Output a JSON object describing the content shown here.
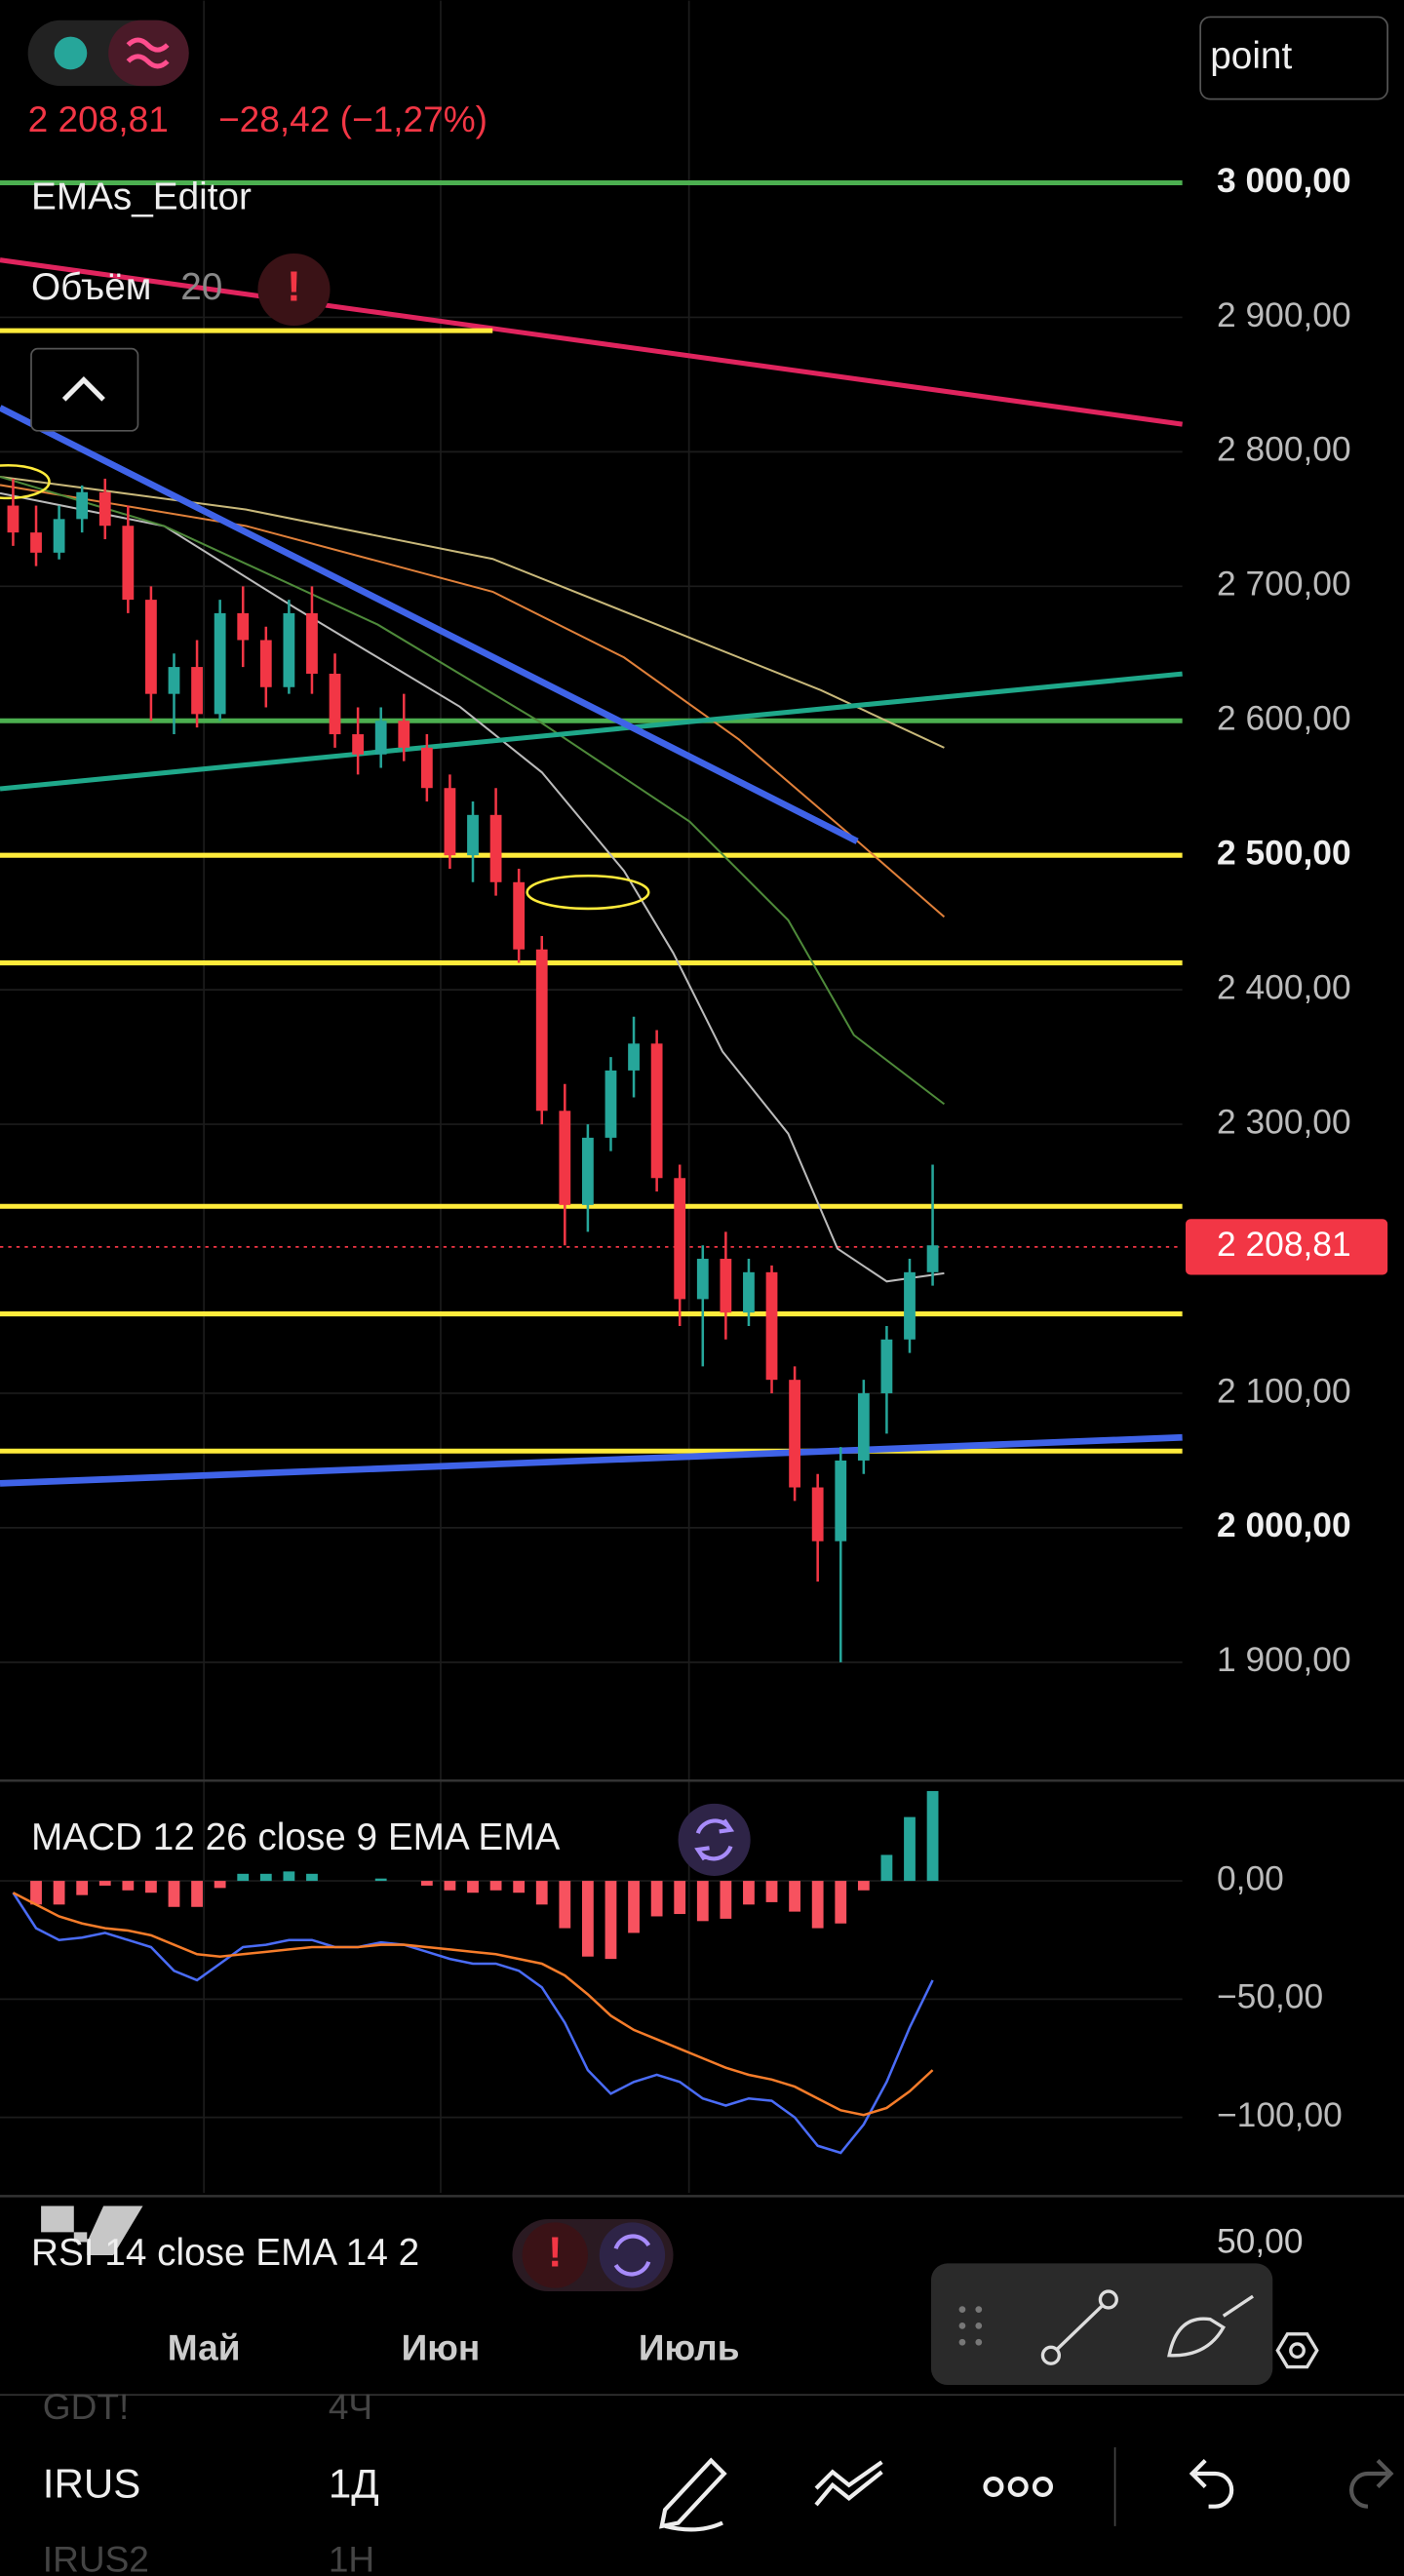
{
  "chart_data": [
    {
      "type": "candlestick",
      "x": [
        0,
        1,
        2,
        3,
        4,
        5,
        6,
        7,
        8,
        9,
        10,
        11,
        12,
        13,
        14,
        15,
        16,
        17,
        18,
        19,
        20,
        21,
        22,
        23,
        24,
        25,
        26,
        27,
        28,
        29,
        30,
        31,
        32,
        33,
        34,
        35,
        36,
        37,
        38,
        39,
        40
      ],
      "open": [
        2760,
        2740,
        2725,
        2750,
        2770,
        2745,
        2690,
        2620,
        2640,
        2605,
        2680,
        2660,
        2625,
        2680,
        2635,
        2590,
        2575,
        2600,
        2580,
        2550,
        2500,
        2530,
        2480,
        2430,
        2310,
        2240,
        2290,
        2340,
        2360,
        2260,
        2170,
        2200,
        2160,
        2190,
        2110,
        2030,
        1990,
        2050,
        2100,
        2140,
        2190
      ],
      "high": [
        2780,
        2760,
        2760,
        2775,
        2780,
        2760,
        2700,
        2650,
        2660,
        2690,
        2700,
        2670,
        2690,
        2700,
        2650,
        2610,
        2610,
        2620,
        2590,
        2560,
        2540,
        2550,
        2490,
        2440,
        2330,
        2300,
        2350,
        2380,
        2370,
        2270,
        2210,
        2220,
        2200,
        2195,
        2120,
        2040,
        2060,
        2110,
        2150,
        2200,
        2270
      ],
      "low": [
        2730,
        2715,
        2720,
        2740,
        2735,
        2680,
        2600,
        2590,
        2595,
        2600,
        2640,
        2610,
        2620,
        2620,
        2580,
        2560,
        2565,
        2570,
        2540,
        2490,
        2480,
        2470,
        2420,
        2300,
        2210,
        2220,
        2280,
        2320,
        2250,
        2150,
        2120,
        2140,
        2150,
        2100,
        2020,
        1960,
        1900,
        2040,
        2070,
        2130,
        2180
      ],
      "close": [
        2740,
        2725,
        2750,
        2770,
        2745,
        2690,
        2620,
        2640,
        2605,
        2680,
        2660,
        2625,
        2680,
        2635,
        2590,
        2575,
        2600,
        2580,
        2550,
        2500,
        2530,
        2480,
        2430,
        2310,
        2240,
        2290,
        2340,
        2360,
        2260,
        2170,
        2200,
        2160,
        2190,
        2110,
        2030,
        1990,
        2050,
        2100,
        2140,
        2190,
        2210
      ],
      "up_color": "#26a69a",
      "down_color": "#f23645",
      "xlim": [
        -0.57,
        50.86
      ],
      "xticks": [
        {
          "value": 8.3,
          "label": "Май"
        },
        {
          "value": 18.6,
          "label": "Июн"
        },
        {
          "value": 29.4,
          "label": "Июль"
        }
      ],
      "ylim": [
        1813.2,
        3135.5
      ],
      "yticks": [
        {
          "value": 3000,
          "label": "3 000,00"
        },
        {
          "value": 2900,
          "label": "2 900,00"
        },
        {
          "value": 2800,
          "label": "2 800,00"
        },
        {
          "value": 2700,
          "label": "2 700,00"
        },
        {
          "value": 2600,
          "label": "2 600,00"
        },
        {
          "value": 2500,
          "label": "2 500,00"
        },
        {
          "value": 2400,
          "label": "2 400,00"
        },
        {
          "value": 2300,
          "label": "2 300,00"
        },
        {
          "value": 2100,
          "label": "2 100,00"
        },
        {
          "value": 2000,
          "label": "2 000,00"
        },
        {
          "value": 1900,
          "label": "1 900,00"
        }
      ],
      "levels": [
        {
          "value": 3000,
          "color": "#4caf50"
        },
        {
          "value": 2600,
          "color": "#4caf50"
        },
        {
          "value": 2500,
          "color": "#ffeb3b"
        },
        {
          "value": 2420,
          "color": "#ffeb3b"
        },
        {
          "value": 2239,
          "color": "#ffeb3b"
        },
        {
          "value": 2159,
          "color": "#ffeb3b"
        },
        {
          "value": 2057,
          "color": "#ffeb3b"
        }
      ],
      "last_price": {
        "value": 2208.81,
        "label": "2 208,81",
        "color": "#f23645"
      },
      "grid": true
    },
    {
      "type": "macd",
      "title": "MACD 12 26 close 9 EMA EMA",
      "x": [
        0,
        1,
        2,
        3,
        4,
        5,
        6,
        7,
        8,
        9,
        10,
        11,
        12,
        13,
        14,
        15,
        16,
        17,
        18,
        19,
        20,
        21,
        22,
        23,
        24,
        25,
        26,
        27,
        28,
        29,
        30,
        31,
        32,
        33,
        34,
        35,
        36,
        37,
        38,
        39,
        40
      ],
      "series": [
        {
          "color": "#4a6cf7",
          "values": [
            -5,
            -20,
            -25,
            -24,
            -22,
            -25,
            -28,
            -38,
            -42,
            -35,
            -28,
            -27,
            -25,
            -25,
            -28,
            -28,
            -26,
            -27,
            -30,
            -33,
            -35,
            -35,
            -38,
            -45,
            -60,
            -80,
            -90,
            -85,
            -82,
            -85,
            -92,
            -95,
            -92,
            -93,
            -100,
            -112,
            -115,
            -103,
            -85,
            -62,
            -42
          ]
        },
        {
          "color": "#f57c2a",
          "values": [
            -5,
            -10,
            -15,
            -18,
            -20,
            -21,
            -23,
            -27,
            -31,
            -32,
            -31,
            -30,
            -29,
            -28,
            -28,
            -28,
            -27,
            -27,
            -28,
            -29,
            -30,
            -31,
            -33,
            -35,
            -40,
            -48,
            -57,
            -63,
            -67,
            -71,
            -75,
            -79,
            -82,
            -84,
            -87,
            -92,
            -97,
            -99,
            -96,
            -89,
            -80
          ]
        }
      ],
      "histogram": [
        0,
        -10,
        -10,
        -6,
        -2,
        -4,
        -5,
        -11,
        -11,
        -3,
        3,
        3,
        4,
        3,
        0,
        0,
        1,
        0,
        -2,
        -4,
        -5,
        -4,
        -5,
        -10,
        -20,
        -32,
        -33,
        -22,
        -15,
        -14,
        -17,
        -16,
        -10,
        -9,
        -13,
        -20,
        -18,
        -4,
        11,
        27,
        38
      ],
      "up_color": "#26a69a",
      "down_color": "#f7525f",
      "xlim": [
        -0.57,
        50.86
      ],
      "ylim": [
        -131.9,
        41.7
      ],
      "yticks": [
        {
          "value": 0,
          "label": "0,00"
        },
        {
          "value": -50,
          "label": "−50,00"
        },
        {
          "value": -100,
          "label": "−100,00"
        }
      ]
    }
  ],
  "ui": {
    "price": "2 208,81",
    "change": "−28,42 (−1,27%)",
    "emas": "EMAs_Editor",
    "volume": "Объём",
    "volume_len": "20",
    "point": "point",
    "rsi": "RSI 14 close EMA 14 2",
    "rsi_tick": "50,00",
    "symbols": [
      {
        "name": "GDT!",
        "tf": "4Ч"
      },
      {
        "name": "IRUS",
        "tf": "1Д"
      },
      {
        "name": "IRUS2",
        "tf": "1Н"
      }
    ]
  }
}
